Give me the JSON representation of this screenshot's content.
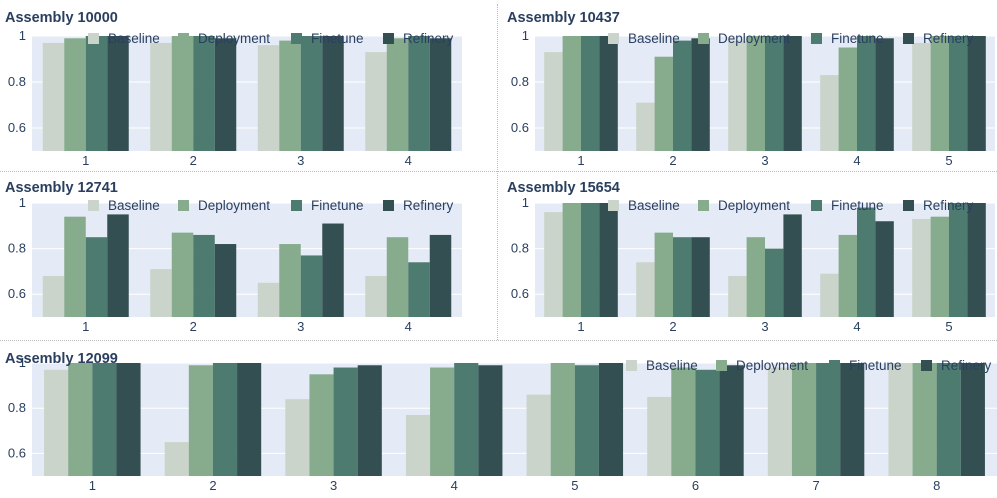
{
  "chart_data": [
    {
      "type": "bar",
      "title": "Assembly 10000",
      "categories": [
        "1",
        "2",
        "3",
        "4"
      ],
      "ylim": [
        0.5,
        1.0
      ],
      "yticks": [
        "0.6",
        "0.8",
        "1"
      ],
      "series": [
        {
          "name": "Baseline",
          "values": [
            0.97,
            0.97,
            0.96,
            0.93
          ]
        },
        {
          "name": "Deployment",
          "values": [
            0.99,
            1.0,
            0.98,
            0.99
          ]
        },
        {
          "name": "Finetune",
          "values": [
            1.0,
            1.0,
            1.0,
            1.0
          ]
        },
        {
          "name": "Refinery",
          "values": [
            1.0,
            0.99,
            1.0,
            0.99
          ]
        }
      ]
    },
    {
      "type": "bar",
      "title": "Assembly 10437",
      "categories": [
        "1",
        "2",
        "3",
        "4",
        "5"
      ],
      "ylim": [
        0.5,
        1.0
      ],
      "yticks": [
        "0.6",
        "0.8",
        "1"
      ],
      "series": [
        {
          "name": "Baseline",
          "values": [
            0.93,
            0.71,
            0.98,
            0.83,
            0.97
          ]
        },
        {
          "name": "Deployment",
          "values": [
            1.0,
            0.91,
            1.0,
            0.95,
            1.0
          ]
        },
        {
          "name": "Finetune",
          "values": [
            1.0,
            0.98,
            1.0,
            1.0,
            1.0
          ]
        },
        {
          "name": "Refinery",
          "values": [
            1.0,
            0.99,
            1.0,
            0.99,
            1.0
          ]
        }
      ]
    },
    {
      "type": "bar",
      "title": "Assembly 12741",
      "categories": [
        "1",
        "2",
        "3",
        "4"
      ],
      "ylim": [
        0.5,
        1.0
      ],
      "yticks": [
        "0.6",
        "0.8",
        "1"
      ],
      "series": [
        {
          "name": "Baseline",
          "values": [
            0.68,
            0.71,
            0.65,
            0.68
          ]
        },
        {
          "name": "Deployment",
          "values": [
            0.94,
            0.87,
            0.82,
            0.85
          ]
        },
        {
          "name": "Finetune",
          "values": [
            0.85,
            0.86,
            0.77,
            0.74
          ]
        },
        {
          "name": "Refinery",
          "values": [
            0.95,
            0.82,
            0.91,
            0.86
          ]
        }
      ]
    },
    {
      "type": "bar",
      "title": "Assembly 15654",
      "categories": [
        "1",
        "2",
        "3",
        "4",
        "5"
      ],
      "ylim": [
        0.5,
        1.0
      ],
      "yticks": [
        "0.6",
        "0.8",
        "1"
      ],
      "series": [
        {
          "name": "Baseline",
          "values": [
            0.96,
            0.74,
            0.68,
            0.69,
            0.93
          ]
        },
        {
          "name": "Deployment",
          "values": [
            1.0,
            0.87,
            0.85,
            0.86,
            0.94
          ]
        },
        {
          "name": "Finetune",
          "values": [
            1.0,
            0.85,
            0.8,
            0.98,
            1.0
          ]
        },
        {
          "name": "Refinery",
          "values": [
            1.0,
            0.85,
            0.95,
            0.92,
            1.0
          ]
        }
      ]
    },
    {
      "type": "bar",
      "title": "Assembly 12099",
      "categories": [
        "1",
        "2",
        "3",
        "4",
        "5",
        "6",
        "7",
        "8"
      ],
      "ylim": [
        0.5,
        1.0
      ],
      "yticks": [
        "0.6",
        "0.8",
        "1"
      ],
      "series": [
        {
          "name": "Baseline",
          "values": [
            0.97,
            0.65,
            0.84,
            0.77,
            0.86,
            0.85,
            0.98,
            1.0
          ]
        },
        {
          "name": "Deployment",
          "values": [
            1.0,
            0.99,
            0.95,
            0.98,
            1.0,
            0.98,
            1.0,
            1.0
          ]
        },
        {
          "name": "Finetune",
          "values": [
            1.0,
            1.0,
            0.98,
            1.0,
            0.99,
            0.97,
            1.0,
            1.0
          ]
        },
        {
          "name": "Refinery",
          "values": [
            1.0,
            1.0,
            0.99,
            0.99,
            1.0,
            0.99,
            1.0,
            1.0
          ]
        }
      ]
    }
  ],
  "colors": {
    "Baseline": "#cbd4ca",
    "Deployment": "#86ab8d",
    "Finetune": "#4e7b70",
    "Refinery": "#344f51",
    "plot_bg": "#e5ebf6",
    "grid": "#ffffff",
    "title_text": "#2a3f5f",
    "axis_text": "#2a3f5f"
  }
}
